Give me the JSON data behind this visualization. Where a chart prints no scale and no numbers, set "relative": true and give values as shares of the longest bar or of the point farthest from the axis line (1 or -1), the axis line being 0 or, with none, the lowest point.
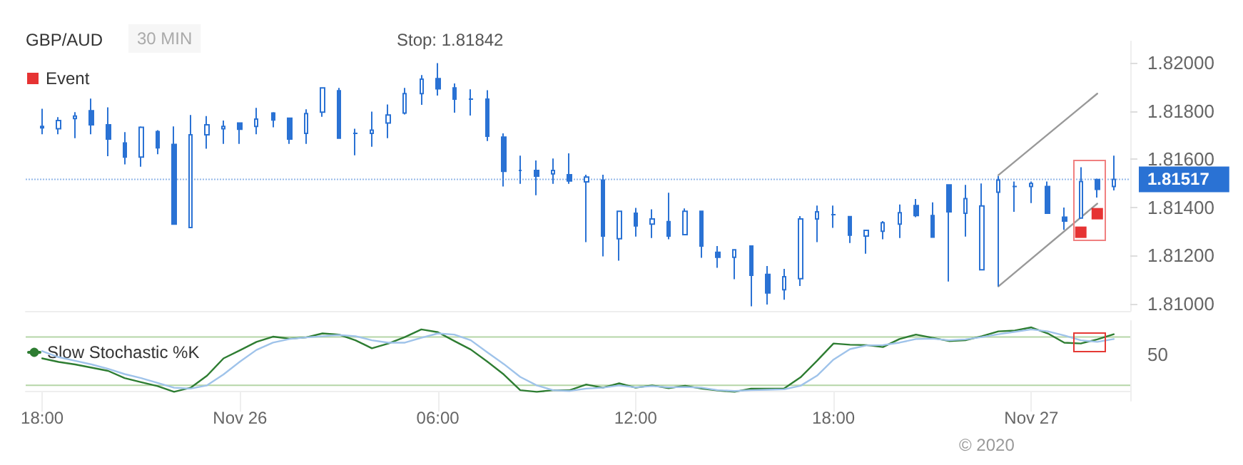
{
  "chart_data": [
    {
      "type": "candlestick",
      "title": "GBP/AUD",
      "subtitle": "30 MIN",
      "annotations": [
        "Stop: 1.81842"
      ],
      "color": "#2a72d4",
      "legend": "top left",
      "grid": false,
      "tick_labels": "y",
      "x": [
        "2020-11-25T18:00",
        "2020-11-25T18:30",
        "2020-11-25T19:00",
        "2020-11-25T19:30",
        "2020-11-25T20:00",
        "2020-11-25T20:30",
        "2020-11-25T21:00",
        "2020-11-25T21:30",
        "2020-11-25T22:00",
        "2020-11-25T22:30",
        "2020-11-25T23:00",
        "2020-11-25T23:30",
        "2020-11-26T00:00",
        "2020-11-26T00:30",
        "2020-11-26T01:00",
        "2020-11-26T01:30",
        "2020-11-26T02:00",
        "2020-11-26T02:30",
        "2020-11-26T03:00",
        "2020-11-26T03:30",
        "2020-11-26T04:00",
        "2020-11-26T04:30",
        "2020-11-26T05:00",
        "2020-11-26T05:30",
        "2020-11-26T06:00",
        "2020-11-26T06:30",
        "2020-11-26T07:00",
        "2020-11-26T07:30",
        "2020-11-26T08:00",
        "2020-11-26T08:30",
        "2020-11-26T09:00",
        "2020-11-26T09:30",
        "2020-11-26T10:00",
        "2020-11-26T10:30",
        "2020-11-26T11:00",
        "2020-11-26T11:30",
        "2020-11-26T12:00",
        "2020-11-26T12:30",
        "2020-11-26T13:00",
        "2020-11-26T13:30",
        "2020-11-26T14:00",
        "2020-11-26T14:30",
        "2020-11-26T15:00",
        "2020-11-26T15:30",
        "2020-11-26T16:00",
        "2020-11-26T16:30",
        "2020-11-26T17:00",
        "2020-11-26T17:30",
        "2020-11-26T18:00",
        "2020-11-26T18:30",
        "2020-11-26T19:00",
        "2020-11-26T19:30",
        "2020-11-26T20:00",
        "2020-11-26T20:30",
        "2020-11-26T21:00",
        "2020-11-26T21:30",
        "2020-11-26T22:00",
        "2020-11-26T22:30",
        "2020-11-26T23:00",
        "2020-11-26T23:30",
        "2020-11-27T00:00",
        "2020-11-27T00:30",
        "2020-11-27T01:00",
        "2020-11-27T01:30",
        "2020-11-27T02:00",
        "2020-11-27T02:30"
      ],
      "ohlc": [
        [
          1.81737,
          1.8181,
          1.81704,
          1.81731
        ],
        [
          1.81727,
          1.81775,
          1.81704,
          1.81761
        ],
        [
          1.81769,
          1.81796,
          1.81688,
          1.8178
        ],
        [
          1.81802,
          1.81852,
          1.81704,
          1.81743
        ],
        [
          1.81743,
          1.81816,
          1.81613,
          1.81684
        ],
        [
          1.81668,
          1.81713,
          1.81579,
          1.81609
        ],
        [
          1.81609,
          1.81737,
          1.81569,
          1.81733
        ],
        [
          1.81715,
          1.81721,
          1.81621,
          1.81648
        ],
        [
          1.81662,
          1.81737,
          1.81329,
          1.81331
        ],
        [
          1.81317,
          1.81784,
          1.81317,
          1.81702
        ],
        [
          1.81702,
          1.8178,
          1.81644,
          1.81743
        ],
        [
          1.81727,
          1.81761,
          1.81664,
          1.81737
        ],
        [
          1.81751,
          1.81751,
          1.81664,
          1.81725
        ],
        [
          1.81737,
          1.81814,
          1.81704,
          1.81767
        ],
        [
          1.81792,
          1.81796,
          1.81733,
          1.81763
        ],
        [
          1.81771,
          1.81771,
          1.81664,
          1.81684
        ],
        [
          1.81708,
          1.81808,
          1.81664,
          1.8179
        ],
        [
          1.81796,
          1.81897,
          1.81777,
          1.81897
        ],
        [
          1.81885,
          1.81897,
          1.81688,
          1.81688
        ],
        [
          1.81708,
          1.81727,
          1.81617,
          1.81708
        ],
        [
          1.81708,
          1.81798,
          1.81652,
          1.81721
        ],
        [
          1.81751,
          1.81828,
          1.81688,
          1.81784
        ],
        [
          1.81792,
          1.81897,
          1.81786,
          1.81873
        ],
        [
          1.81873,
          1.8195,
          1.81826,
          1.81933
        ],
        [
          1.81935,
          1.82,
          1.81865,
          1.81893
        ],
        [
          1.81897,
          1.81915,
          1.81794,
          1.8185
        ],
        [
          1.8185,
          1.81891,
          1.81782,
          1.8185
        ],
        [
          1.8185,
          1.81887,
          1.81676,
          1.81696
        ],
        [
          1.81692,
          1.81708,
          1.81487,
          1.8155
        ],
        [
          1.81554,
          1.81615,
          1.81498,
          1.81554
        ],
        [
          1.81554,
          1.81595,
          1.81451,
          1.8153
        ],
        [
          1.8154,
          1.81603,
          1.81498,
          1.81554
        ],
        [
          1.81536,
          1.81625,
          1.81498,
          1.8151
        ],
        [
          1.81506,
          1.81536,
          1.81256,
          1.81526
        ],
        [
          1.81514,
          1.81536,
          1.81197,
          1.81281
        ],
        [
          1.8127,
          1.81384,
          1.81179,
          1.81384
        ],
        [
          1.81376,
          1.81398,
          1.81279,
          1.81323
        ],
        [
          1.81331,
          1.81392,
          1.81273,
          1.81352
        ],
        [
          1.81341,
          1.81461,
          1.81268,
          1.81281
        ],
        [
          1.81287,
          1.81396,
          1.81287,
          1.81384
        ],
        [
          1.81384,
          1.81384,
          1.81191,
          1.8124
        ],
        [
          1.81214,
          1.8124,
          1.81149,
          1.81193
        ],
        [
          1.81193,
          1.81224,
          1.81102,
          1.81224
        ],
        [
          1.8124,
          1.8124,
          1.80989,
          1.81118
        ],
        [
          1.81122,
          1.81157,
          1.80997,
          1.81045
        ],
        [
          1.81058,
          1.81145,
          1.81017,
          1.81112
        ],
        [
          1.81104,
          1.81364,
          1.81074,
          1.81352
        ],
        [
          1.81352,
          1.81408,
          1.81256,
          1.81382
        ],
        [
          1.8137,
          1.81408,
          1.81315,
          1.8137
        ],
        [
          1.81362,
          1.81362,
          1.81252,
          1.81285
        ],
        [
          1.81281,
          1.81305,
          1.81208,
          1.81305
        ],
        [
          1.81301,
          1.81343,
          1.81268,
          1.81337
        ],
        [
          1.81331,
          1.81412,
          1.81273,
          1.81378
        ],
        [
          1.81408,
          1.81435,
          1.8136,
          1.81366
        ],
        [
          1.81366,
          1.81421,
          1.81277,
          1.81277
        ],
        [
          1.81494,
          1.81494,
          1.81092,
          1.81382
        ],
        [
          1.81376,
          1.81494,
          1.81279,
          1.81437
        ],
        [
          1.81141,
          1.815,
          1.81141,
          1.81406
        ],
        [
          1.81463,
          1.8153,
          1.81072,
          1.81514
        ],
        [
          1.81487,
          1.81508,
          1.81382,
          1.81487
        ],
        [
          1.81487,
          1.81508,
          1.81418,
          1.815
        ],
        [
          1.81487,
          1.81508,
          1.81376,
          1.81376
        ],
        [
          1.8136,
          1.814,
          1.81307,
          1.81343
        ],
        [
          1.81356,
          1.81567,
          1.81356,
          1.81508
        ],
        [
          1.81516,
          1.8152,
          1.81441,
          1.81475
        ],
        [
          1.81487,
          1.81615,
          1.81471,
          1.81517
        ]
      ],
      "series": [
        {
          "type": "line",
          "color": "#999999",
          "x": [
            "2020-11-26T23:00",
            "2020-11-27T02:00"
          ],
          "values": [
            1.81534,
            1.81873
          ]
        },
        {
          "type": "line",
          "color": "#999999",
          "x": [
            "2020-11-26T23:00",
            "2020-11-27T02:00"
          ],
          "values": [
            1.81072,
            1.81416
          ]
        },
        {
          "type": "scatter",
          "name": "Event",
          "color": "#e00000",
          "marker": "square",
          "x": [
            "2020-11-27T01:30",
            "2020-11-27T02:00"
          ],
          "values": [
            1.81297,
            1.81374
          ]
        }
      ],
      "xlim": [
        "2020-11-25T17:30",
        "2020-11-27T03:00"
      ],
      "ylim": [
        1.8097,
        1.8209
      ],
      "yticks": [
        {
          "value": 1.81,
          "label": "1.81000"
        },
        {
          "value": 1.812,
          "label": "1.81200"
        },
        {
          "value": 1.814,
          "label": "1.81400"
        },
        {
          "value": 1.816,
          "label": "1.81600"
        },
        {
          "value": 1.818,
          "label": "1.81800"
        },
        {
          "value": 1.82,
          "label": "1.82000"
        }
      ],
      "ref_lines": [
        {
          "axis": "y",
          "value": 1.81517,
          "label": "1.81517",
          "color": "#2a72d4"
        }
      ]
    },
    {
      "type": "line",
      "legend": "top left",
      "grid": false,
      "marker": "none",
      "relative": true,
      "tick_labels": "x",
      "annotations": [
        "50",
        "© 2020"
      ],
      "x": [
        "2020-11-25T18:00",
        "2020-11-25T18:30",
        "2020-11-25T19:00",
        "2020-11-25T19:30",
        "2020-11-25T20:00",
        "2020-11-25T20:30",
        "2020-11-25T21:00",
        "2020-11-25T21:30",
        "2020-11-25T22:00",
        "2020-11-25T22:30",
        "2020-11-25T23:00",
        "2020-11-25T23:30",
        "2020-11-26T00:00",
        "2020-11-26T00:30",
        "2020-11-26T01:00",
        "2020-11-26T01:30",
        "2020-11-26T02:00",
        "2020-11-26T02:30",
        "2020-11-26T03:00",
        "2020-11-26T03:30",
        "2020-11-26T04:00",
        "2020-11-26T04:30",
        "2020-11-26T05:00",
        "2020-11-26T05:30",
        "2020-11-26T06:00",
        "2020-11-26T06:30",
        "2020-11-26T07:00",
        "2020-11-26T07:30",
        "2020-11-26T08:00",
        "2020-11-26T08:30",
        "2020-11-26T09:00",
        "2020-11-26T09:30",
        "2020-11-26T10:00",
        "2020-11-26T10:30",
        "2020-11-26T11:00",
        "2020-11-26T11:30",
        "2020-11-26T12:00",
        "2020-11-26T12:30",
        "2020-11-26T13:00",
        "2020-11-26T13:30",
        "2020-11-26T14:00",
        "2020-11-26T14:30",
        "2020-11-26T15:00",
        "2020-11-26T15:30",
        "2020-11-26T16:00",
        "2020-11-26T16:30",
        "2020-11-26T17:00",
        "2020-11-26T17:30",
        "2020-11-26T18:00",
        "2020-11-26T18:30",
        "2020-11-26T19:00",
        "2020-11-26T19:30",
        "2020-11-26T20:00",
        "2020-11-26T20:30",
        "2020-11-26T21:00",
        "2020-11-26T21:30",
        "2020-11-26T22:00",
        "2020-11-26T22:30",
        "2020-11-26T23:00",
        "2020-11-26T23:30",
        "2020-11-27T00:00",
        "2020-11-27T00:30",
        "2020-11-27T01:00",
        "2020-11-27T01:30",
        "2020-11-27T02:00",
        "2020-11-27T02:30"
      ],
      "series": [
        {
          "name": "Slow Stochastic %K",
          "color": "#2e7d32",
          "values": [
            0.519,
            0.463,
            0.425,
            0.375,
            0.325,
            0.213,
            0.15,
            0.088,
            0,
            0.063,
            0.25,
            0.519,
            0.644,
            0.775,
            0.856,
            0.825,
            0.844,
            0.906,
            0.888,
            0.8,
            0.675,
            0.75,
            0.85,
            0.969,
            0.925,
            0.788,
            0.656,
            0.469,
            0.269,
            0.025,
            0,
            0.025,
            0.025,
            0.113,
            0.063,
            0.131,
            0.063,
            0.1,
            0.056,
            0.094,
            0.05,
            0.019,
            0,
            0.05,
            0.05,
            0.05,
            0.225,
            0.481,
            0.75,
            0.731,
            0.725,
            0.694,
            0.819,
            0.888,
            0.838,
            0.788,
            0.8,
            0.863,
            0.938,
            0.95,
            1,
            0.906,
            0.763,
            0.75,
            0.813,
            0.894
          ]
        },
        {
          "color": "#9fc3ea",
          "values": [
            0.631,
            0.538,
            0.481,
            0.425,
            0.356,
            0.275,
            0.213,
            0.138,
            0.063,
            0.05,
            0.1,
            0.269,
            0.469,
            0.65,
            0.763,
            0.819,
            0.844,
            0.863,
            0.881,
            0.863,
            0.8,
            0.763,
            0.763,
            0.838,
            0.906,
            0.888,
            0.8,
            0.613,
            0.431,
            0.231,
            0.1,
            0.025,
            0.013,
            0.05,
            0.063,
            0.1,
            0.069,
            0.088,
            0.069,
            0.075,
            0.063,
            0.025,
            0.013,
            0.025,
            0.031,
            0.038,
            0.094,
            0.25,
            0.5,
            0.663,
            0.719,
            0.725,
            0.763,
            0.819,
            0.825,
            0.8,
            0.813,
            0.85,
            0.894,
            0.931,
            0.969,
            0.938,
            0.875,
            0.8,
            0.775,
            0.819
          ]
        }
      ],
      "xlim": [
        "2020-11-25T17:30",
        "2020-11-27T03:00"
      ],
      "xticks": [
        {
          "value": "2020-11-25T18:00",
          "label": "18:00"
        },
        {
          "value": "2020-11-26T00:00",
          "label": "Nov 26"
        },
        {
          "value": "2020-11-26T06:00",
          "label": "06:00"
        },
        {
          "value": "2020-11-26T12:00",
          "label": "12:00"
        },
        {
          "value": "2020-11-26T18:00",
          "label": "18:00"
        },
        {
          "value": "2020-11-27T00:00",
          "label": "Nov 27"
        }
      ],
      "ref_lines": [
        {
          "axis": "y",
          "value": 0.1,
          "color": "#b5d6a7"
        },
        {
          "axis": "y",
          "value": 0.85,
          "color": "#b5d6a7"
        }
      ]
    }
  ]
}
